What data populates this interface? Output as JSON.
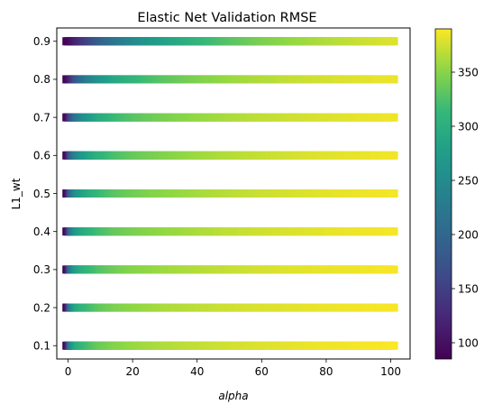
{
  "chart_data": {
    "type": "scatter",
    "title": "Elastic Net Validation RMSE",
    "xlabel": "alpha",
    "ylabel": "L1_wt",
    "xlim": [
      -3.5,
      106.0
    ],
    "ylim": [
      0.065,
      0.935
    ],
    "xticks": [
      0,
      20,
      40,
      60,
      80,
      100
    ],
    "yticks": [
      0.1,
      0.2,
      0.3,
      0.4,
      0.5,
      0.6,
      0.7,
      0.8,
      0.9
    ],
    "grid": false,
    "alpha_range": [
      -0.5,
      101.0
    ],
    "alpha_samples": [
      -0.5,
      0,
      1,
      2,
      3,
      5,
      7,
      10,
      15,
      20,
      25,
      30,
      40,
      50,
      60,
      70,
      80,
      90,
      101
    ],
    "series": [
      {
        "l1_wt": 0.1,
        "rmse": [
          85,
          110,
          220,
          268,
          296,
          312,
          322,
          336,
          348,
          355,
          360,
          364,
          370,
          375,
          379,
          382,
          385,
          387,
          389
        ]
      },
      {
        "l1_wt": 0.2,
        "rmse": [
          85,
          108,
          215,
          262,
          290,
          308,
          318,
          332,
          345,
          352,
          357,
          362,
          368,
          374,
          378,
          381,
          384,
          386,
          388
        ]
      },
      {
        "l1_wt": 0.3,
        "rmse": [
          85,
          106,
          205,
          252,
          280,
          300,
          312,
          326,
          340,
          348,
          353,
          358,
          365,
          371,
          376,
          380,
          383,
          385,
          388
        ]
      },
      {
        "l1_wt": 0.4,
        "rmse": [
          85,
          104,
          195,
          240,
          270,
          292,
          305,
          320,
          335,
          343,
          349,
          354,
          362,
          369,
          374,
          378,
          382,
          385,
          387
        ]
      },
      {
        "l1_wt": 0.5,
        "rmse": [
          85,
          102,
          185,
          228,
          258,
          282,
          297,
          314,
          330,
          339,
          346,
          351,
          360,
          367,
          373,
          377,
          381,
          384,
          387
        ]
      },
      {
        "l1_wt": 0.6,
        "rmse": [
          85,
          100,
          170,
          212,
          242,
          268,
          285,
          305,
          323,
          334,
          341,
          347,
          357,
          365,
          371,
          376,
          380,
          383,
          386
        ]
      },
      {
        "l1_wt": 0.7,
        "rmse": [
          85,
          96,
          150,
          190,
          220,
          250,
          270,
          293,
          315,
          327,
          336,
          343,
          354,
          362,
          369,
          374,
          378,
          382,
          385
        ]
      },
      {
        "l1_wt": 0.8,
        "rmse": [
          85,
          92,
          118,
          148,
          175,
          210,
          235,
          262,
          290,
          307,
          320,
          330,
          345,
          356,
          364,
          371,
          376,
          380,
          384
        ]
      },
      {
        "l1_wt": 0.9,
        "rmse": [
          85,
          88,
          96,
          108,
          120,
          140,
          158,
          185,
          220,
          245,
          265,
          282,
          308,
          328,
          343,
          355,
          364,
          372,
          379
        ]
      }
    ],
    "colorbar": {
      "colormap": "viridis",
      "range": [
        85,
        390
      ],
      "ticks": [
        100,
        150,
        200,
        250,
        300,
        350
      ]
    }
  }
}
